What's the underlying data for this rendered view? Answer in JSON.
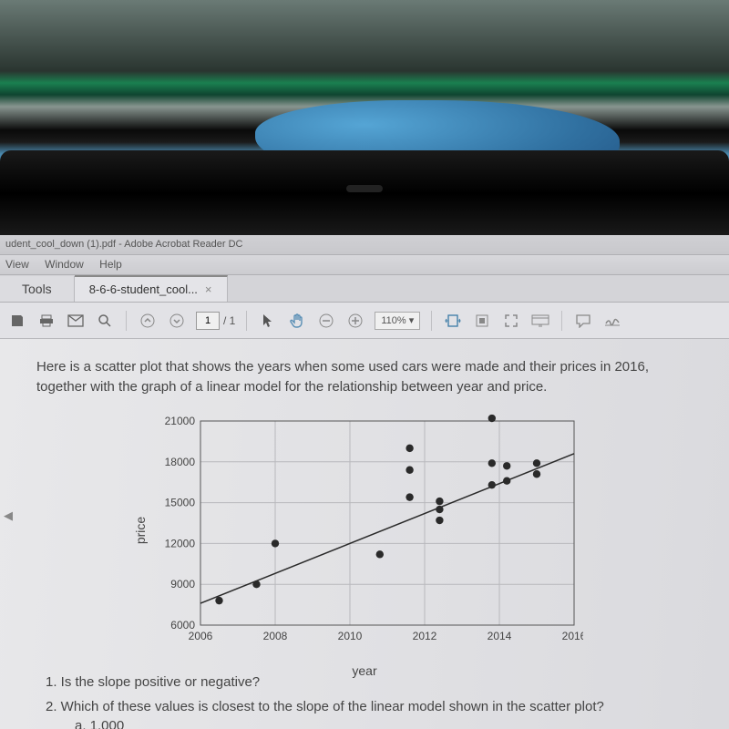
{
  "window": {
    "title": "udent_cool_down (1).pdf - Adobe Acrobat Reader DC",
    "menus": [
      "View",
      "Window",
      "Help"
    ]
  },
  "tabs": {
    "tools_label": "Tools",
    "active_label": "8-6-6-student_cool...",
    "close_glyph": "×"
  },
  "toolbar": {
    "page_current": "1",
    "page_total": "/ 1",
    "zoom": "110%",
    "zoom_caret": "▾"
  },
  "document": {
    "intro": "Here is a scatter plot that shows the years when some used cars were made and their prices in 2016, together with the graph of a linear model for the relationship between year and price.",
    "q1": "1. Is the slope positive or negative?",
    "q2": "2. Which of these values is closest to the slope of the linear model shown in the scatter plot?",
    "q2a": "a. 1,000"
  },
  "chart": {
    "type": "scatter",
    "xlabel": "year",
    "ylabel": "price",
    "xlim": [
      2006,
      2016
    ],
    "ylim": [
      6000,
      21000
    ],
    "xticks": [
      2006,
      2008,
      2010,
      2012,
      2014,
      2016
    ],
    "yticks": [
      6000,
      9000,
      12000,
      15000,
      18000,
      21000
    ],
    "tick_fontsize": 12,
    "label_fontsize": 14,
    "background_color": "transparent",
    "grid_color": "#b8b8bc",
    "axis_color": "#555555",
    "marker_color": "#2a2a2a",
    "marker_size": 4.2,
    "line_color": "#2a2a2a",
    "line_width": 1.5,
    "points": [
      {
        "x": 2006.5,
        "y": 7800
      },
      {
        "x": 2007.5,
        "y": 9000
      },
      {
        "x": 2008.0,
        "y": 12000
      },
      {
        "x": 2010.8,
        "y": 11200
      },
      {
        "x": 2011.6,
        "y": 15400
      },
      {
        "x": 2011.6,
        "y": 17400
      },
      {
        "x": 2011.6,
        "y": 19000
      },
      {
        "x": 2012.4,
        "y": 13700
      },
      {
        "x": 2012.4,
        "y": 14500
      },
      {
        "x": 2012.4,
        "y": 15100
      },
      {
        "x": 2013.8,
        "y": 16300
      },
      {
        "x": 2013.8,
        "y": 17900
      },
      {
        "x": 2013.8,
        "y": 21200
      },
      {
        "x": 2014.2,
        "y": 16600
      },
      {
        "x": 2014.2,
        "y": 17700
      },
      {
        "x": 2015.0,
        "y": 17100
      },
      {
        "x": 2015.0,
        "y": 17900
      }
    ],
    "trend_line": {
      "x1": 2006,
      "y1": 7600,
      "x2": 2016,
      "y2": 18600
    }
  }
}
